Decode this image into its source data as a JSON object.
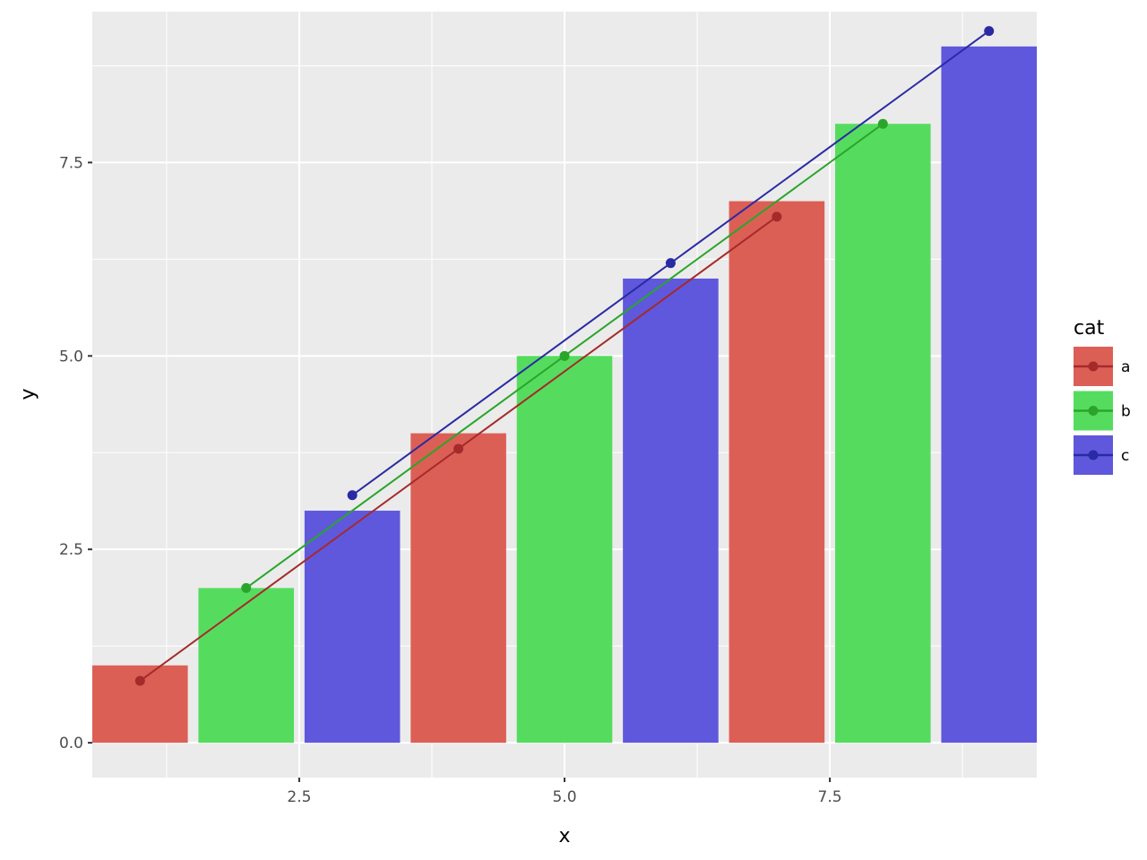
{
  "chart_data": {
    "type": "bar",
    "title": "",
    "xlabel": "x",
    "ylabel": "y",
    "xlim": [
      0.55,
      9.45
    ],
    "ylim": [
      -0.45,
      9.45
    ],
    "x_ticks": [
      2.5,
      5.0,
      7.5
    ],
    "x_tick_labels": [
      "2.5",
      "5.0",
      "7.5"
    ],
    "y_ticks": [
      0.0,
      2.5,
      5.0,
      7.5
    ],
    "y_tick_labels": [
      "0.0",
      "2.5",
      "5.0",
      "7.5"
    ],
    "grid": true,
    "legend": {
      "title": "cat",
      "position": "right"
    },
    "bar_width": 0.9,
    "bars": [
      {
        "x": 1,
        "y": 1,
        "cat": "a"
      },
      {
        "x": 2,
        "y": 2,
        "cat": "b"
      },
      {
        "x": 3,
        "y": 3,
        "cat": "c"
      },
      {
        "x": 4,
        "y": 4,
        "cat": "a"
      },
      {
        "x": 5,
        "y": 5,
        "cat": "b"
      },
      {
        "x": 6,
        "y": 6,
        "cat": "c"
      },
      {
        "x": 7,
        "y": 7,
        "cat": "a"
      },
      {
        "x": 8,
        "y": 8,
        "cat": "b"
      },
      {
        "x": 9,
        "y": 9,
        "cat": "c"
      }
    ],
    "series": [
      {
        "name": "a",
        "bar_color": "#dc5f56",
        "line_color": "#a52a2a",
        "x": [
          1,
          4,
          7
        ],
        "y": [
          0.8,
          3.8,
          6.8
        ]
      },
      {
        "name": "b",
        "bar_color": "#55dc5f",
        "line_color": "#2aa52a",
        "x": [
          2,
          5,
          8
        ],
        "y": [
          2.0,
          5.0,
          8.0
        ]
      },
      {
        "name": "c",
        "bar_color": "#5f58dc",
        "line_color": "#2a2aa5",
        "x": [
          3,
          6,
          9
        ],
        "y": [
          3.2,
          6.2,
          9.2
        ]
      }
    ]
  }
}
